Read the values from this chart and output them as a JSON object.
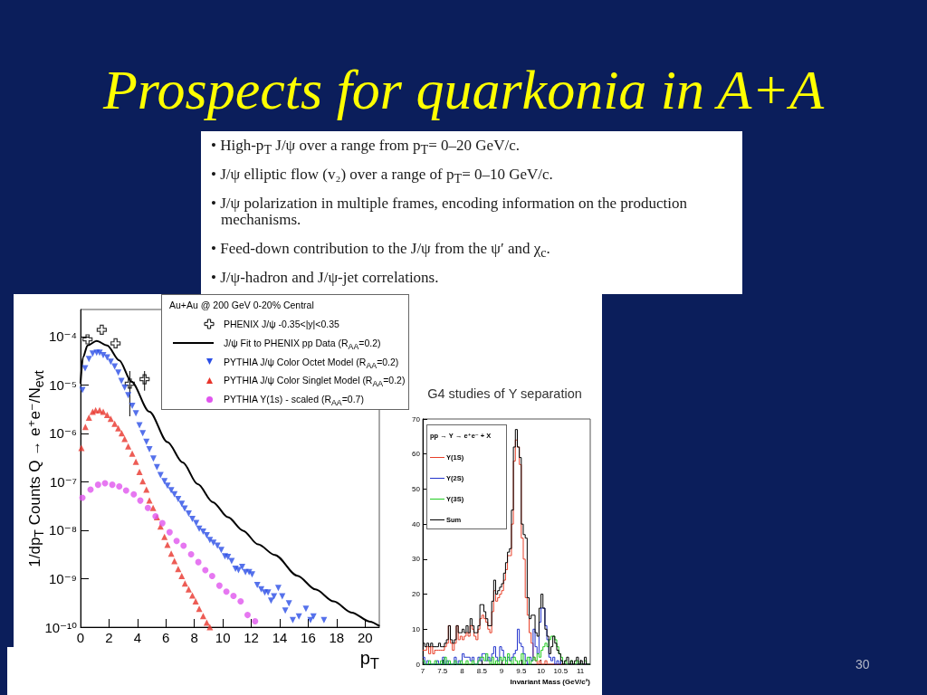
{
  "chart_data": [
    {
      "type": "other",
      "title": "Prospects for quarkonia in A+A",
      "annotations": [
        "• High-p$_{T}$ J/ψ over a range from p$_{T}$= 0–20 GeV/c.",
        "• J/ψ elliptic flow (v₂) over a range of p$_{T}$= 0–10 GeV/c.",
        "• J/ψ polarization in multiple frames, encoding information on the production mechanisms.",
        "• Feed-down contribution to the J/ψ from the ψ′ and χ$_{c}$.",
        "• J/ψ-hadron and J/ψ-jet correlations.",
        "30"
      ]
    },
    {
      "type": "scatter",
      "legend_title": "Au+Au @ 200 GeV 0-20% Central",
      "xlabel": "p$_{T}$",
      "ylabel": "1/dp$_{T}$ Counts Q → e⁺e⁻/N$_{evt}$",
      "log": "y",
      "legend": "top right",
      "xlim": [
        0,
        21
      ],
      "xticks": [
        0,
        2,
        4,
        6,
        8,
        10,
        12,
        14,
        16,
        18,
        20
      ],
      "ylim": [
        1e-10,
        0.00036
      ],
      "yticks": [
        {
          "value": 1e-10,
          "label": "10⁻¹⁰"
        },
        {
          "value": 1e-09,
          "label": "10⁻⁹"
        },
        {
          "value": 1e-08,
          "label": "10⁻⁸"
        },
        {
          "value": 1e-07,
          "label": "10⁻⁷"
        },
        {
          "value": 1e-06,
          "label": "10⁻⁶"
        },
        {
          "value": 1e-05,
          "label": "10⁻⁵"
        },
        {
          "value": 0.0001,
          "label": "10⁻⁴"
        }
      ],
      "series": [
        {
          "name": "PHENIX J/ψ -0.35<|y|<0.35",
          "type": "scatter",
          "marker": "cross",
          "color": "#000000",
          "x": [
            0.49,
            1.49,
            2.46,
            3.46,
            4.5
          ],
          "values": [
            8.7e-05,
            0.000137,
            7.2e-05,
            1.06e-05,
            1.31e-05
          ],
          "errors": [
            null,
            null,
            null,
            [
              2.25e-06,
              1.93e-05
            ],
            [
              7.6e-06,
              1.93e-05
            ]
          ]
        },
        {
          "name": "J/ψ Fit to PHENIX pp Data (R$_{AA}$=0.2)",
          "type": "line",
          "marker": "none",
          "line_style": "solid",
          "color": "#000000",
          "x": [
            0,
            0.17,
            0.49,
            1.13,
            1.87,
            2.72,
            3.57,
            4.84,
            6.11,
            7.18,
            8.24,
            9.3,
            10.36,
            11.42,
            12.48,
            13.65,
            15.24,
            16.51,
            17.79,
            19.06,
            20.34,
            20.97
          ],
          "values": [
            1.1e-05,
            3.7e-05,
            6.5e-05,
            8.1e-05,
            6.5e-05,
            3.2e-05,
            1.17e-05,
            2.8e-06,
            6.6e-07,
            2.5e-07,
            8.9e-08,
            3.8e-08,
            1.86e-08,
            9.8e-09,
            5.1e-09,
            3.1e-09,
            1.15e-09,
            6e-10,
            3.4e-10,
            2e-10,
            1.3e-10,
            1.07e-10
          ]
        },
        {
          "name": "PYTHIA J/ψ Color Octet Model (R$_{AA}$=0.2)",
          "type": "scatter",
          "marker": "triangle-down",
          "color": "#2a4ee6",
          "x": [
            0.13,
            0.32,
            0.59,
            0.85,
            1.13,
            1.34,
            1.59,
            1.87,
            2.12,
            2.4,
            2.65,
            2.87,
            3.1,
            3.35,
            3.63,
            3.89,
            4.14,
            4.37,
            4.63,
            4.84,
            5.12,
            5.37,
            5.62,
            5.9,
            6.11,
            6.37,
            6.6,
            6.86,
            7.11,
            7.32,
            7.6,
            7.86,
            8.13,
            8.34,
            8.62,
            8.87,
            9.09,
            9.34,
            9.62,
            9.89,
            10.15,
            10.36,
            10.62,
            10.89,
            11.1,
            11.36,
            11.59,
            11.85,
            12.06,
            12.42,
            12.7,
            12.95,
            13.18,
            13.39,
            13.6,
            13.9,
            14.18,
            14.39,
            14.65,
            14.92,
            15.35,
            15.84,
            16.16,
            16.37,
            17.11
          ],
          "values": [
            7.8e-06,
            2.2e-05,
            3.4e-05,
            4.4e-05,
            4.6e-05,
            4.6e-05,
            4.1e-05,
            3.7e-05,
            3e-05,
            2.4e-05,
            1.8e-05,
            1.2e-05,
            8.8e-06,
            6.1e-06,
            3.7e-06,
            2.6e-06,
            1.47e-06,
            1e-06,
            6.7e-07,
            4.7e-07,
            3e-07,
            2e-07,
            1.38e-07,
            1.03e-07,
            8.3e-08,
            6.7e-08,
            5.5e-08,
            4.4e-08,
            3.5e-08,
            2.8e-08,
            2.2e-08,
            1.7e-08,
            1.4e-08,
            1.08e-08,
            9.3e-09,
            7.9e-09,
            6.3e-09,
            5.5e-09,
            4.8e-09,
            3.9e-09,
            2.9e-09,
            2.8e-09,
            2.3e-09,
            1.6e-09,
            1.5e-09,
            1.74e-09,
            1.37e-09,
            1.37e-09,
            1.22e-09,
            7.4e-10,
            6e-10,
            5.2e-10,
            5.2e-10,
            3.5e-10,
            4.3e-10,
            6.4e-10,
            4.3e-10,
            2.2e-10,
            3.1e-10,
            1.4e-10,
            1.65e-10,
            2.4e-10,
            1.4e-10,
            1.65e-10,
            1.4e-10
          ]
        },
        {
          "name": "PYTHIA J/ψ Color Singlet Model (R$_{AA}$=0.2)",
          "type": "scatter",
          "marker": "triangle",
          "color": "#e8332a",
          "x": [
            0.06,
            0.34,
            0.59,
            0.85,
            1.06,
            1.34,
            1.59,
            1.87,
            2.12,
            2.4,
            2.65,
            2.89,
            3.1,
            3.35,
            3.63,
            3.89,
            4.14,
            4.37,
            4.63,
            4.84,
            5.1,
            5.37,
            5.62,
            5.9,
            6.11,
            6.37,
            6.6,
            6.86,
            7.11,
            7.34,
            7.6,
            7.86,
            8.09,
            8.34,
            8.62,
            8.87,
            9.09
          ],
          "values": [
            5e-07,
            1.36e-06,
            2.1e-06,
            2.8e-06,
            3e-06,
            3e-06,
            2.8e-06,
            2.4e-06,
            2e-06,
            1.58e-06,
            1.27e-06,
            1e-06,
            7.7e-07,
            5.4e-07,
            3.8e-07,
            2.6e-07,
            1.6e-07,
            1.03e-07,
            6.9e-08,
            4.1e-08,
            2.9e-08,
            1.86e-08,
            1.2e-08,
            7.3e-09,
            5e-09,
            3.3e-09,
            2.3e-09,
            1.58e-09,
            1.14e-09,
            8e-10,
            6e-10,
            4.5e-10,
            3.4e-10,
            2.4e-10,
            1.7e-10,
            1.24e-10,
            1e-10
          ]
        },
        {
          "name": "PYTHIA Υ(1s) - scaled (R$_{AA}$=0.7)",
          "type": "scatter",
          "marker": "circle",
          "color": "#e055ee",
          "x": [
            0.13,
            0.7,
            1.23,
            1.72,
            2.23,
            2.72,
            3.2,
            3.74,
            4.2,
            4.73,
            5.27,
            5.75,
            6.26,
            6.75,
            7.24,
            7.77,
            8.28,
            8.77,
            9.25,
            9.76,
            10.25,
            10.75,
            11.25,
            11.74,
            12.27
          ],
          "values": [
            4.7e-08,
            6.9e-08,
            8.7e-08,
            9.3e-08,
            8.7e-08,
            8e-08,
            6.6e-08,
            5.5e-08,
            4.1e-08,
            2.9e-08,
            1.94e-08,
            1.4e-08,
            9.1e-09,
            6e-09,
            4.8e-09,
            3.2e-09,
            2.2e-09,
            1.5e-09,
            1.14e-09,
            7.2e-10,
            5.4e-10,
            4.4e-10,
            3.4e-10,
            1.78e-10,
            1.32e-10
          ]
        }
      ]
    },
    {
      "type": "histogram",
      "title": "G4 studies of Υ separation",
      "xlabel": "Invariant Mass (GeV/c²)",
      "legend_title": "pp → Υ → e⁺e⁻ + X",
      "legend": "top left",
      "xlim": [
        7,
        11.25
      ],
      "xticks": [
        7,
        7.5,
        8,
        8.5,
        9,
        9.5,
        10,
        10.5,
        11
      ],
      "ylim": [
        0,
        70
      ],
      "yticks": [
        0,
        10,
        20,
        30,
        40,
        50,
        60,
        70
      ],
      "bins": [
        7,
        7.05,
        7.1,
        7.15,
        7.2,
        7.25,
        7.3,
        7.35,
        7.4,
        7.45,
        7.5,
        7.55,
        7.6,
        7.65,
        7.7,
        7.75,
        7.8,
        7.85,
        7.9,
        7.95,
        8,
        8.05,
        8.1,
        8.15,
        8.2,
        8.25,
        8.3,
        8.35,
        8.4,
        8.45,
        8.5,
        8.55,
        8.6,
        8.65,
        8.7,
        8.75,
        8.8,
        8.85,
        8.9,
        8.95,
        9,
        9.05,
        9.1,
        9.15,
        9.2,
        9.25,
        9.3,
        9.35,
        9.4,
        9.45,
        9.5,
        9.55,
        9.6,
        9.65,
        9.7,
        9.75,
        9.8,
        9.85,
        9.9,
        9.95,
        10,
        10.05,
        10.1,
        10.15,
        10.2,
        10.25,
        10.3,
        10.35,
        10.4,
        10.45,
        10.5,
        10.55,
        10.6,
        10.65,
        10.7,
        10.75,
        10.8,
        10.85,
        10.9,
        10.95,
        11,
        11.05,
        11.1,
        11.15,
        11.2,
        11.25
      ],
      "series": [
        {
          "name": "Υ(1S)",
          "color": "#e8402a",
          "values": [
            4,
            4,
            5,
            3,
            5,
            3,
            4,
            4,
            4,
            4,
            4,
            5,
            6,
            11,
            6,
            4,
            6,
            11,
            7,
            8,
            7,
            8,
            9,
            8,
            11,
            10,
            8,
            7,
            10,
            13,
            14,
            13,
            12,
            10,
            9,
            15,
            21,
            18,
            19,
            20,
            21,
            24,
            27,
            31,
            31,
            40,
            58,
            64,
            62,
            57,
            36,
            30,
            19,
            14,
            9,
            6,
            2,
            1,
            0,
            1,
            0,
            0,
            1,
            0,
            0,
            0,
            0,
            0,
            0,
            0,
            0,
            0,
            0,
            0,
            0,
            0,
            0,
            0,
            0,
            0,
            0,
            0,
            0,
            0,
            0
          ]
        },
        {
          "name": "Υ(2S)",
          "color": "#2233cc",
          "values": [
            2,
            0,
            1,
            0,
            0,
            0,
            0,
            1,
            0,
            0,
            2,
            0,
            1,
            0,
            0,
            0,
            2,
            0,
            1,
            0,
            3,
            2,
            2,
            2,
            1,
            2,
            0,
            0,
            2,
            1,
            3,
            3,
            1,
            2,
            1,
            3,
            5,
            2,
            1,
            5,
            4,
            2,
            1,
            2,
            1,
            2,
            3,
            4,
            10,
            6,
            5,
            3,
            1,
            0,
            2,
            1,
            10,
            5,
            3,
            12,
            16,
            16,
            11,
            7,
            2,
            1,
            2,
            0,
            1,
            0,
            1,
            0,
            0,
            0,
            0,
            0,
            0,
            0,
            0,
            0,
            0,
            0,
            0,
            0,
            0
          ]
        },
        {
          "name": "Υ(3S)",
          "color": "#22cc22",
          "values": [
            1,
            0,
            0,
            1,
            0,
            0,
            1,
            0,
            0,
            1,
            0,
            2,
            0,
            1,
            0,
            0,
            1,
            0,
            0,
            1,
            0,
            0,
            1,
            0,
            0,
            1,
            0,
            0,
            1,
            2,
            2,
            1,
            3,
            1,
            0,
            2,
            0,
            1,
            0,
            2,
            1,
            2,
            0,
            3,
            1,
            0,
            2,
            1,
            0,
            1,
            3,
            0,
            1,
            2,
            0,
            1,
            2,
            1,
            3,
            2,
            4,
            5,
            6,
            5,
            7,
            8,
            8,
            7,
            5,
            3,
            2,
            0,
            1,
            0,
            0,
            1,
            0,
            0,
            1,
            0,
            0,
            0,
            1,
            0,
            0
          ]
        },
        {
          "name": "Sum",
          "color": "#000000",
          "values": [
            6,
            5,
            6,
            5,
            6,
            5,
            5,
            5,
            6,
            5,
            5,
            6,
            7,
            11,
            7,
            6,
            7,
            11,
            9,
            9,
            10,
            9,
            11,
            9,
            13,
            11,
            9,
            9,
            11,
            17,
            17,
            15,
            13,
            11,
            11,
            18,
            24,
            20,
            21,
            22,
            23,
            26,
            29,
            32,
            33,
            44,
            62,
            67,
            62,
            59,
            40,
            37,
            36,
            19,
            13,
            14,
            14,
            9,
            8,
            16,
            20,
            16,
            10,
            8,
            3,
            5,
            8,
            6,
            4,
            3,
            1,
            0,
            1,
            2,
            0,
            1,
            0,
            1,
            2,
            0,
            1,
            0,
            2,
            0,
            0
          ]
        }
      ]
    }
  ]
}
